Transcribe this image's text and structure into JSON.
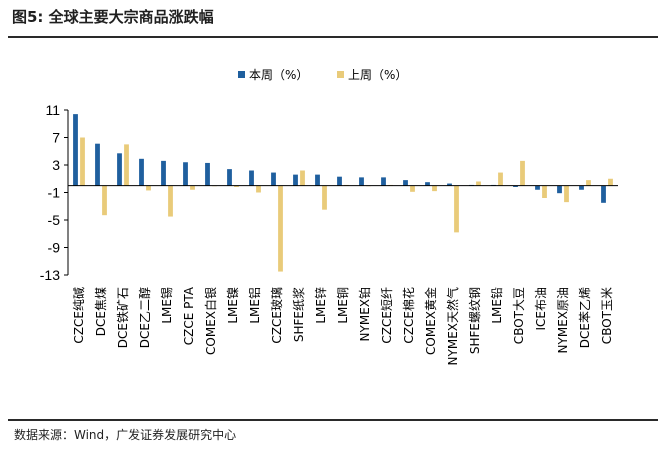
{
  "header": {
    "title": "图5: 全球主要大宗商品涨跌幅"
  },
  "footer": {
    "source": "数据来源：Wind，广发证券发展研究中心"
  },
  "colors": {
    "this_week": "#1F5F9E",
    "last_week": "#E9CB7A",
    "axis": "#000000"
  },
  "chart_data": {
    "type": "bar",
    "title": "",
    "xlabel": "",
    "ylabel": "",
    "ylim": [
      -13,
      11
    ],
    "yticks": [
      11,
      7,
      3,
      -1,
      -5,
      -9,
      -13
    ],
    "grid": false,
    "legend_position": "top",
    "categories": [
      "CZCE纯碱",
      "DCE焦煤",
      "DCE铁矿石",
      "DCE乙二醇",
      "LME锡",
      "CZCE PTA",
      "COMEX白银",
      "LME镍",
      "LME铝",
      "CZCE玻璃",
      "SHFE纸浆",
      "LME锌",
      "LME铜",
      "NYMEX铂",
      "CZCE短纤",
      "CZCE棉花",
      "COMEX黄金",
      "NYMEX天然气",
      "SHFE螺纹钢",
      "LME铅",
      "CBOT大豆",
      "ICE布油",
      "NYMEX原油",
      "DCE苯乙烯",
      "CBOT玉米"
    ],
    "series": [
      {
        "name": "本周（%）",
        "values": [
          10.4,
          6.1,
          4.7,
          3.9,
          3.6,
          3.4,
          3.3,
          2.4,
          2.2,
          1.9,
          1.6,
          1.6,
          1.3,
          1.2,
          1.2,
          0.8,
          0.5,
          0.3,
          0.1,
          0.1,
          -0.2,
          -0.6,
          -1.1,
          -0.6,
          -2.5
        ]
      },
      {
        "name": "上周（%）",
        "values": [
          7.0,
          -4.3,
          6.0,
          -0.7,
          -4.5,
          -0.6,
          0.0,
          -0.2,
          -1.0,
          -12.5,
          2.2,
          -3.5,
          0.1,
          0.0,
          0.1,
          -0.9,
          -0.8,
          -6.8,
          0.6,
          1.9,
          3.6,
          -1.8,
          -2.4,
          0.8,
          1.0
        ]
      }
    ]
  }
}
